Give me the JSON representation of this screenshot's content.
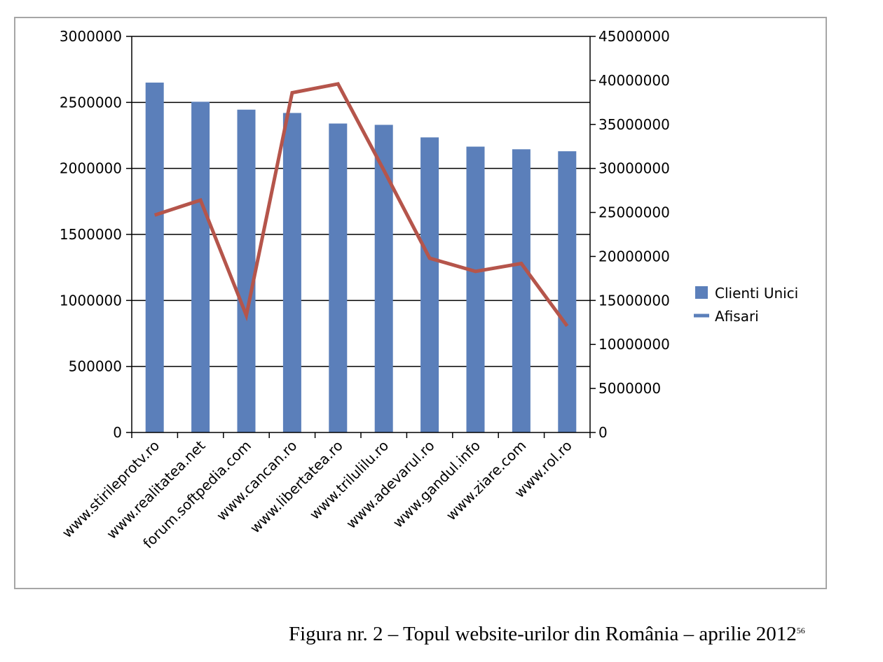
{
  "chart_data": {
    "type": "bar",
    "categories": [
      "www.stirileprotv.ro",
      "www.realitatea.net",
      "forum.softpedia.com",
      "www.cancan.ro",
      "www.libertatea.ro",
      "www.trilulilu.ro",
      "www.adevarul.ro",
      "www.gandul.info",
      "www.ziare.com",
      "www.rol.ro"
    ],
    "series": [
      {
        "name": "Clienti Unici",
        "type": "bar",
        "axis": "left",
        "color": "#5b7fba",
        "values": [
          2650000,
          2505000,
          2445000,
          2420000,
          2340000,
          2330000,
          2235000,
          2165000,
          2145000,
          2130000
        ]
      },
      {
        "name": "Afisari",
        "type": "line",
        "axis": "right",
        "color": "#b5554b",
        "values": [
          24700000,
          26400000,
          13300000,
          38600000,
          39600000,
          29800000,
          19800000,
          18300000,
          19200000,
          12100000
        ]
      }
    ],
    "ylim_left": [
      0,
      3000000
    ],
    "yticks_left": [
      "0",
      "500000",
      "1000000",
      "1500000",
      "2000000",
      "2500000",
      "3000000"
    ],
    "ylim_right": [
      0,
      45000000
    ],
    "yticks_right": [
      "0",
      "5000000",
      "10000000",
      "15000000",
      "20000000",
      "25000000",
      "30000000",
      "35000000",
      "40000000",
      "45000000"
    ],
    "grid": true,
    "legend_position": "right"
  },
  "caption": {
    "text": "Figura nr. 2 – Topul website-urilor din România – aprilie 2012",
    "footnote": "56"
  }
}
